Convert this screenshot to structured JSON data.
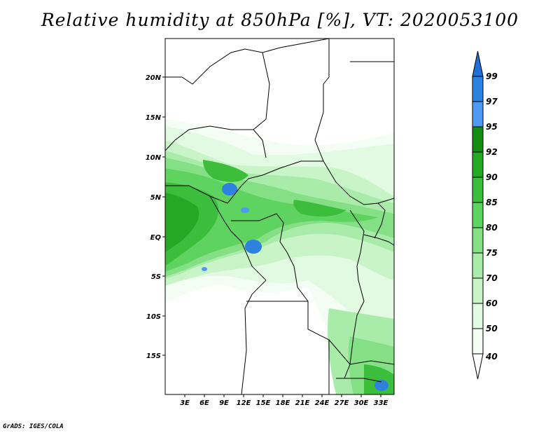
{
  "title": "Relative humidity at 850hPa [%], VT: 2020053100",
  "credit": "GrADS: IGES/COLA",
  "lat_ticks": [
    "20N",
    "15N",
    "10N",
    "5N",
    "EQ",
    "5S",
    "10S",
    "15S"
  ],
  "lon_ticks": [
    "3E",
    "6E",
    "9E",
    "12E",
    "15E",
    "18E",
    "21E",
    "24E",
    "27E",
    "30E",
    "33E"
  ],
  "colorbar": {
    "labels": [
      "99",
      "97",
      "95",
      "92",
      "90",
      "85",
      "80",
      "75",
      "70",
      "60",
      "50",
      "40"
    ],
    "colors": [
      "#1f6fd6",
      "#2d82e0",
      "#4e9af0",
      "#128d12",
      "#25a925",
      "#3cbe3c",
      "#5fd35f",
      "#85e085",
      "#a9eca9",
      "#c8f4c8",
      "#e1fae1",
      "#f3fdf3",
      "#ffffff"
    ]
  },
  "map": {
    "projection": "latlon",
    "lon_range": [
      0,
      35
    ],
    "lat_range": [
      -20,
      24
    ],
    "field": "Relative humidity at 850hPa",
    "units": "%"
  }
}
